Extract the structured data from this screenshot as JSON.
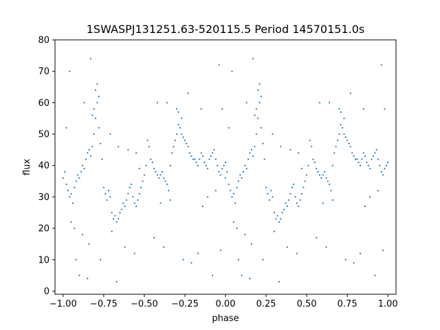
{
  "chart_data": {
    "type": "scatter",
    "title": "1SWASPJ131251.63-520115.5 Period 14570151.0s",
    "xlabel": "phase",
    "ylabel": "flux",
    "xlim": [
      -1.05,
      1.05
    ],
    "ylim": [
      -1,
      80
    ],
    "xticks": [
      -1.0,
      -0.75,
      -0.5,
      -0.25,
      0.0,
      0.25,
      0.5,
      0.75,
      1.0
    ],
    "xtick_labels": [
      "−1.00",
      "−0.75",
      "−0.50",
      "−0.25",
      "0.00",
      "0.25",
      "0.50",
      "0.75",
      "1.00"
    ],
    "yticks": [
      0,
      10,
      20,
      30,
      40,
      50,
      60,
      70,
      80
    ],
    "ytick_labels": [
      "0",
      "10",
      "20",
      "30",
      "40",
      "50",
      "60",
      "70",
      "80"
    ],
    "grid": false,
    "legend": "none",
    "point_color": "#1f77b4",
    "series": [
      {
        "points": [
          [
            0.0,
            36
          ],
          [
            0.01,
            38
          ],
          [
            0.02,
            34
          ],
          [
            0.03,
            32
          ],
          [
            0.04,
            30
          ],
          [
            0.05,
            31
          ],
          [
            0.06,
            28
          ],
          [
            0.07,
            33
          ],
          [
            0.08,
            35
          ],
          [
            0.09,
            37
          ],
          [
            0.1,
            36
          ],
          [
            0.11,
            38
          ],
          [
            0.12,
            40
          ],
          [
            0.13,
            39
          ],
          [
            0.14,
            42
          ],
          [
            0.15,
            44
          ],
          [
            0.16,
            45
          ],
          [
            0.17,
            43
          ],
          [
            0.18,
            46
          ],
          [
            0.19,
            50
          ],
          [
            0.2,
            55
          ],
          [
            0.21,
            60
          ],
          [
            0.22,
            52
          ],
          [
            0.23,
            47
          ],
          [
            0.24,
            42
          ],
          [
            0.25,
            33
          ],
          [
            0.26,
            31
          ],
          [
            0.27,
            29
          ],
          [
            0.28,
            32
          ],
          [
            0.29,
            30
          ],
          [
            0.3,
            25
          ],
          [
            0.31,
            23
          ],
          [
            0.32,
            24
          ],
          [
            0.33,
            22
          ],
          [
            0.34,
            23
          ],
          [
            0.35,
            25
          ],
          [
            0.36,
            26
          ],
          [
            0.37,
            28
          ],
          [
            0.38,
            27
          ],
          [
            0.39,
            29
          ],
          [
            0.4,
            31
          ],
          [
            0.41,
            33
          ],
          [
            0.42,
            34
          ],
          [
            0.43,
            30
          ],
          [
            0.44,
            28
          ],
          [
            0.45,
            27
          ],
          [
            0.46,
            29
          ],
          [
            0.47,
            31
          ],
          [
            0.48,
            33
          ],
          [
            0.49,
            35
          ],
          [
            0.5,
            37
          ],
          [
            0.51,
            40
          ],
          [
            0.52,
            48
          ],
          [
            0.53,
            46
          ],
          [
            0.54,
            42
          ],
          [
            0.55,
            41
          ],
          [
            0.56,
            39
          ],
          [
            0.57,
            38
          ],
          [
            0.58,
            37
          ],
          [
            0.59,
            36
          ],
          [
            0.6,
            37
          ],
          [
            0.61,
            38
          ],
          [
            0.62,
            36
          ],
          [
            0.63,
            35
          ],
          [
            0.64,
            34
          ],
          [
            0.65,
            32
          ],
          [
            0.66,
            40
          ],
          [
            0.67,
            44
          ],
          [
            0.68,
            46
          ],
          [
            0.69,
            48
          ],
          [
            0.7,
            50
          ],
          [
            0.71,
            53
          ],
          [
            0.72,
            52
          ],
          [
            0.73,
            50
          ],
          [
            0.74,
            49
          ],
          [
            0.75,
            48
          ],
          [
            0.76,
            47
          ],
          [
            0.77,
            46
          ],
          [
            0.78,
            44
          ],
          [
            0.79,
            43
          ],
          [
            0.8,
            42
          ],
          [
            0.81,
            42
          ],
          [
            0.82,
            41
          ],
          [
            0.83,
            40
          ],
          [
            0.84,
            42
          ],
          [
            0.85,
            44
          ],
          [
            0.86,
            43
          ],
          [
            0.87,
            41
          ],
          [
            0.88,
            40
          ],
          [
            0.89,
            39
          ],
          [
            0.9,
            42
          ],
          [
            0.91,
            43
          ],
          [
            0.92,
            44
          ],
          [
            0.93,
            45
          ],
          [
            0.94,
            42
          ],
          [
            0.95,
            40
          ],
          [
            0.96,
            38
          ],
          [
            0.97,
            37
          ],
          [
            0.98,
            39
          ],
          [
            0.99,
            40
          ],
          [
            1.0,
            41
          ],
          [
            0.2,
            64
          ],
          [
            0.21,
            66
          ],
          [
            0.22,
            62
          ],
          [
            0.19,
            58
          ],
          [
            0.18,
            56
          ],
          [
            0.71,
            57
          ],
          [
            0.73,
            55
          ],
          [
            0.7,
            58
          ],
          [
            0.05,
            22
          ],
          [
            0.07,
            20
          ],
          [
            0.12,
            18
          ],
          [
            0.16,
            15
          ],
          [
            0.23,
            10
          ],
          [
            0.3,
            19
          ],
          [
            0.38,
            14
          ],
          [
            0.44,
            12
          ],
          [
            0.08,
            10
          ],
          [
            0.1,
            5
          ],
          [
            0.15,
            4
          ],
          [
            0.33,
            3
          ],
          [
            0.56,
            17
          ],
          [
            0.62,
            14
          ],
          [
            0.74,
            10
          ],
          [
            0.79,
            9
          ],
          [
            0.83,
            12
          ],
          [
            0.92,
            5
          ],
          [
            0.97,
            13
          ],
          [
            0.04,
            70
          ],
          [
            0.13,
            60
          ],
          [
            0.17,
            74
          ],
          [
            0.58,
            60
          ],
          [
            0.64,
            60
          ],
          [
            0.77,
            63
          ],
          [
            0.85,
            58
          ],
          [
            0.96,
            72
          ],
          [
            0.98,
            58
          ],
          [
            0.02,
            52
          ],
          [
            0.29,
            50
          ],
          [
            0.34,
            46
          ],
          [
            0.4,
            45
          ],
          [
            0.45,
            44
          ],
          [
            0.47,
            39
          ],
          [
            0.6,
            28
          ],
          [
            0.66,
            29
          ],
          [
            0.86,
            27
          ],
          [
            0.89,
            30
          ],
          [
            0.94,
            32
          ]
        ]
      }
    ]
  }
}
